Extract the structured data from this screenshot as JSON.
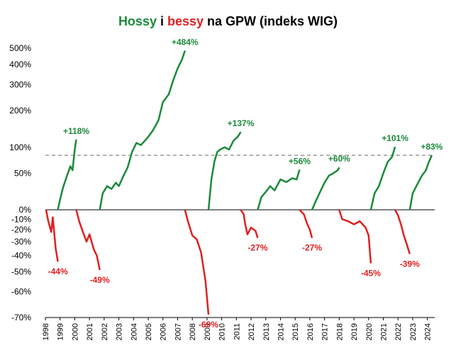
{
  "chart_data": {
    "type": "line",
    "title_parts": [
      "Hossy",
      " i ",
      "bessy",
      " na GPW (indeks WIG)"
    ],
    "title_colors": {
      "hossy": "#1a8a3a",
      "bessy": "#e02020"
    },
    "ylabel": "",
    "xlabel": "",
    "y_scale": "log(1+r) percent change",
    "y_ticks": [
      "500%",
      "400%",
      "300%",
      "200%",
      "100%",
      "50%",
      "0%",
      "-10%",
      "-20%",
      "-30%",
      "-40%",
      "-50%",
      "-60%",
      "-70%"
    ],
    "y_tick_values": [
      500,
      400,
      300,
      200,
      100,
      50,
      0,
      -10,
      -20,
      -30,
      -40,
      -50,
      -60,
      -70
    ],
    "x_ticks": [
      "1998",
      "1999",
      "2000",
      "2001",
      "2002",
      "2003",
      "2004",
      "2005",
      "2006",
      "2007",
      "2008",
      "2009",
      "2010",
      "2011",
      "2012",
      "2013",
      "2014",
      "2015",
      "2016",
      "2017",
      "2018",
      "2019",
      "2020",
      "2021",
      "2022",
      "2023",
      "2024"
    ],
    "xlim": [
      1998,
      2024.5
    ],
    "reference_line": {
      "value": 83,
      "style": "dashed",
      "color": "#999999"
    },
    "colors": {
      "bull": "#1a8a3a",
      "bear": "#e02020"
    },
    "series": [
      {
        "kind": "bear",
        "label": "-44%",
        "points": [
          [
            1998.05,
            0
          ],
          [
            1998.2,
            -12
          ],
          [
            1998.4,
            -22
          ],
          [
            1998.5,
            -8
          ],
          [
            1998.7,
            -35
          ],
          [
            1998.85,
            -44
          ]
        ]
      },
      {
        "kind": "bull",
        "label": "+118%",
        "points": [
          [
            1998.85,
            0
          ],
          [
            1999.0,
            12
          ],
          [
            1999.2,
            28
          ],
          [
            1999.5,
            48
          ],
          [
            1999.7,
            62
          ],
          [
            1999.85,
            55
          ],
          [
            2000.0,
            95
          ],
          [
            2000.1,
            118
          ]
        ]
      },
      {
        "kind": "bear",
        "label": "-49%",
        "points": [
          [
            2000.1,
            0
          ],
          [
            2000.3,
            -12
          ],
          [
            2000.5,
            -20
          ],
          [
            2000.8,
            -30
          ],
          [
            2001.0,
            -24
          ],
          [
            2001.3,
            -36
          ],
          [
            2001.5,
            -40
          ],
          [
            2001.7,
            -49
          ]
        ]
      },
      {
        "kind": "bull",
        "label": "+484%",
        "points": [
          [
            2001.7,
            0
          ],
          [
            2001.9,
            20
          ],
          [
            2002.2,
            30
          ],
          [
            2002.5,
            26
          ],
          [
            2002.8,
            35
          ],
          [
            2003.0,
            30
          ],
          [
            2003.3,
            45
          ],
          [
            2003.6,
            60
          ],
          [
            2003.9,
            90
          ],
          [
            2004.2,
            110
          ],
          [
            2004.5,
            105
          ],
          [
            2004.9,
            120
          ],
          [
            2005.3,
            140
          ],
          [
            2005.7,
            170
          ],
          [
            2006.0,
            230
          ],
          [
            2006.4,
            260
          ],
          [
            2006.7,
            320
          ],
          [
            2007.0,
            380
          ],
          [
            2007.3,
            430
          ],
          [
            2007.5,
            484
          ]
        ]
      },
      {
        "kind": "bear",
        "label": "-69%",
        "points": [
          [
            2007.5,
            0
          ],
          [
            2007.7,
            -12
          ],
          [
            2008.0,
            -25
          ],
          [
            2008.3,
            -28
          ],
          [
            2008.6,
            -38
          ],
          [
            2008.9,
            -55
          ],
          [
            2009.1,
            -69
          ]
        ]
      },
      {
        "kind": "bull",
        "label": "+137%",
        "points": [
          [
            2009.1,
            0
          ],
          [
            2009.3,
            40
          ],
          [
            2009.5,
            70
          ],
          [
            2009.7,
            90
          ],
          [
            2009.9,
            95
          ],
          [
            2010.2,
            100
          ],
          [
            2010.5,
            95
          ],
          [
            2010.8,
            115
          ],
          [
            2011.1,
            125
          ],
          [
            2011.3,
            137
          ]
        ]
      },
      {
        "kind": "bear",
        "label": "-27%",
        "points": [
          [
            2011.3,
            0
          ],
          [
            2011.5,
            -5
          ],
          [
            2011.6,
            -15
          ],
          [
            2011.75,
            -24
          ],
          [
            2012.0,
            -18
          ],
          [
            2012.3,
            -21
          ],
          [
            2012.45,
            -27
          ]
        ]
      },
      {
        "kind": "bull",
        "label": "+56%",
        "points": [
          [
            2012.45,
            0
          ],
          [
            2012.7,
            15
          ],
          [
            2013.0,
            22
          ],
          [
            2013.3,
            30
          ],
          [
            2013.6,
            24
          ],
          [
            2014.0,
            40
          ],
          [
            2014.4,
            36
          ],
          [
            2014.8,
            42
          ],
          [
            2015.1,
            40
          ],
          [
            2015.3,
            56
          ]
        ]
      },
      {
        "kind": "bear",
        "label": "-27%",
        "points": [
          [
            2015.3,
            0
          ],
          [
            2015.6,
            -5
          ],
          [
            2015.8,
            -14
          ],
          [
            2016.0,
            -20
          ],
          [
            2016.15,
            -27
          ]
        ]
      },
      {
        "kind": "bull",
        "label": "+60%",
        "points": [
          [
            2016.15,
            0
          ],
          [
            2016.4,
            10
          ],
          [
            2016.7,
            22
          ],
          [
            2017.0,
            35
          ],
          [
            2017.3,
            46
          ],
          [
            2017.6,
            50
          ],
          [
            2017.9,
            55
          ],
          [
            2018.0,
            60
          ]
        ]
      },
      {
        "kind": "bear",
        "label": "-45%",
        "points": [
          [
            2018.0,
            0
          ],
          [
            2018.2,
            -10
          ],
          [
            2018.6,
            -12
          ],
          [
            2019.0,
            -15
          ],
          [
            2019.4,
            -12
          ],
          [
            2019.8,
            -18
          ],
          [
            2020.0,
            -25
          ],
          [
            2020.15,
            -45
          ]
        ]
      },
      {
        "kind": "bull",
        "label": "+101%",
        "points": [
          [
            2020.15,
            0
          ],
          [
            2020.4,
            20
          ],
          [
            2020.7,
            30
          ],
          [
            2021.0,
            50
          ],
          [
            2021.3,
            70
          ],
          [
            2021.6,
            80
          ],
          [
            2021.8,
            101
          ]
        ]
      },
      {
        "kind": "bear",
        "label": "-39%",
        "points": [
          [
            2021.8,
            0
          ],
          [
            2022.0,
            -6
          ],
          [
            2022.2,
            -15
          ],
          [
            2022.4,
            -25
          ],
          [
            2022.6,
            -32
          ],
          [
            2022.8,
            -39
          ]
        ]
      },
      {
        "kind": "bull",
        "label": "+83%",
        "points": [
          [
            2022.8,
            0
          ],
          [
            2023.0,
            20
          ],
          [
            2023.3,
            32
          ],
          [
            2023.6,
            45
          ],
          [
            2023.9,
            55
          ],
          [
            2024.1,
            70
          ],
          [
            2024.3,
            83
          ]
        ]
      }
    ]
  }
}
